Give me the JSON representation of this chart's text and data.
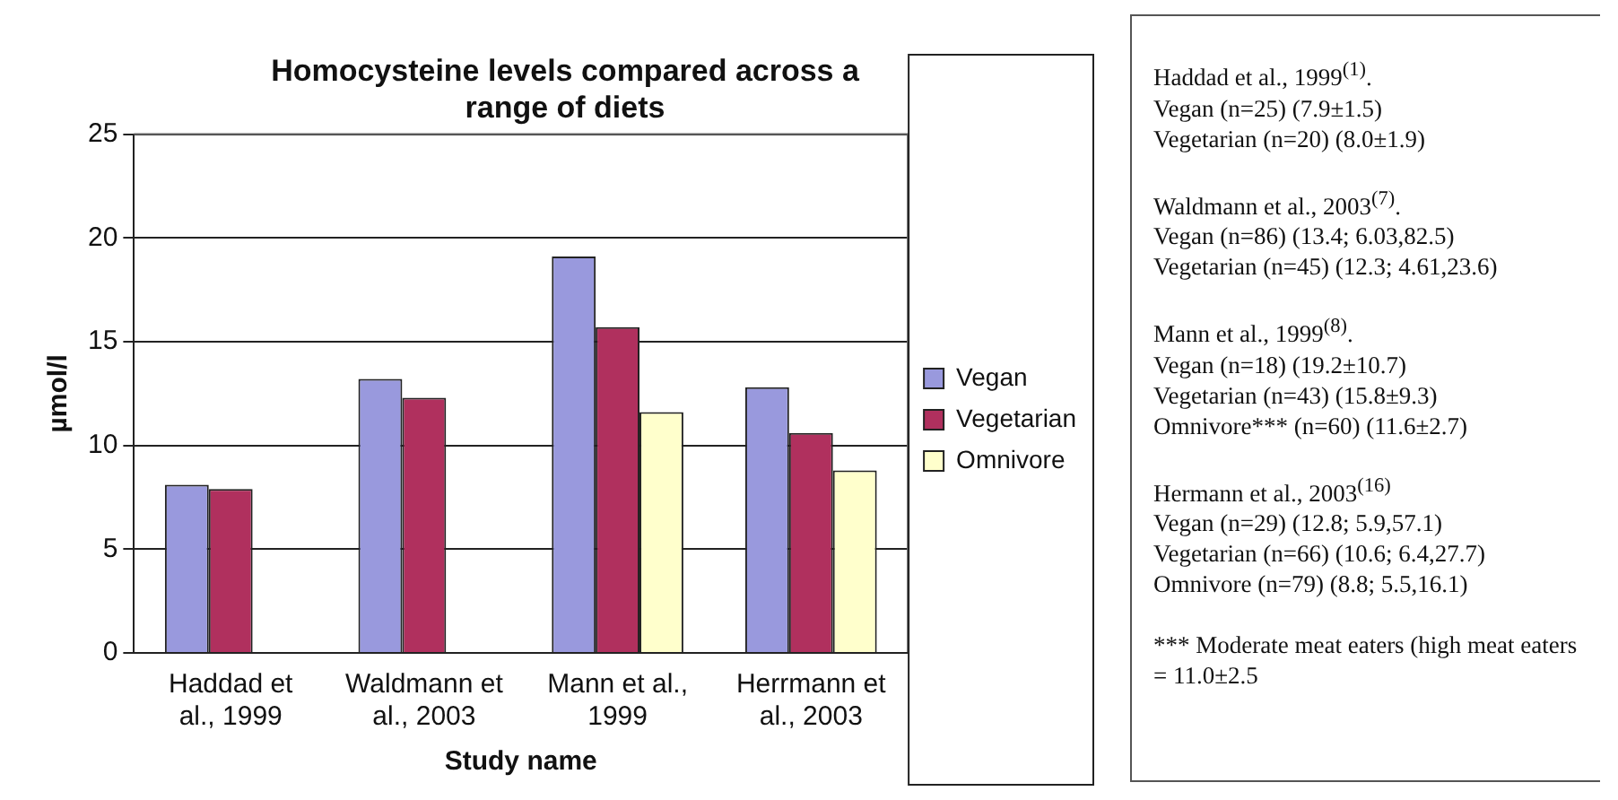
{
  "chart_data": {
    "type": "bar",
    "title": "Homocysteine levels compared across a range of diets",
    "xlabel": "Study name",
    "ylabel": "µmol/l",
    "categories": [
      "Haddad et al., 1999",
      "Waldmann et al., 2003",
      "Mann et al., 1999",
      "Herrmann et al., 2003"
    ],
    "series": [
      {
        "name": "Vegan",
        "color": "#9999dd",
        "values": [
          8.1,
          13.2,
          19.1,
          12.8
        ]
      },
      {
        "name": "Vegetarian",
        "color": "#b0305e",
        "values": [
          7.9,
          12.3,
          15.7,
          10.6
        ]
      },
      {
        "name": "Omnivore",
        "color": "#ffffcc",
        "values": [
          null,
          null,
          11.6,
          8.8
        ]
      }
    ],
    "ylim": [
      0,
      25
    ],
    "yticks": [
      0,
      5,
      10,
      15,
      20,
      25
    ],
    "grid": "y",
    "legend": "right",
    "annotations": [
      "Haddad et al., 1999$^{(1)}$.\nVegan (n=25) (7.9±1.5)\nVegetarian (n=20) (8.0±1.9)",
      "Waldmann et al., 2003$^{(7)}$.\nVegan (n=86) (13.4; 6.03,82.5)\nVegetarian (n=45) (12.3; 4.61,23.6)",
      "Mann et al., 1999$^{(8)}$.\nVegan (n=18) (19.2±10.7)\nVegetarian (n=43) (15.8±9.3)\nOmnivore*** (n=60) (11.6±2.7)",
      "Hermann et al., 2003$^{(16)}$\nVegan (n=29) (12.8; 5.9,57.1)\nVegetarian (n=66) (10.6; 6.4,27.7)\nOmnivore (n=79) (8.8; 5.5,16.1)",
      "*** Moderate meat eaters (high meat eaters = 11.0±2.5"
    ]
  }
}
